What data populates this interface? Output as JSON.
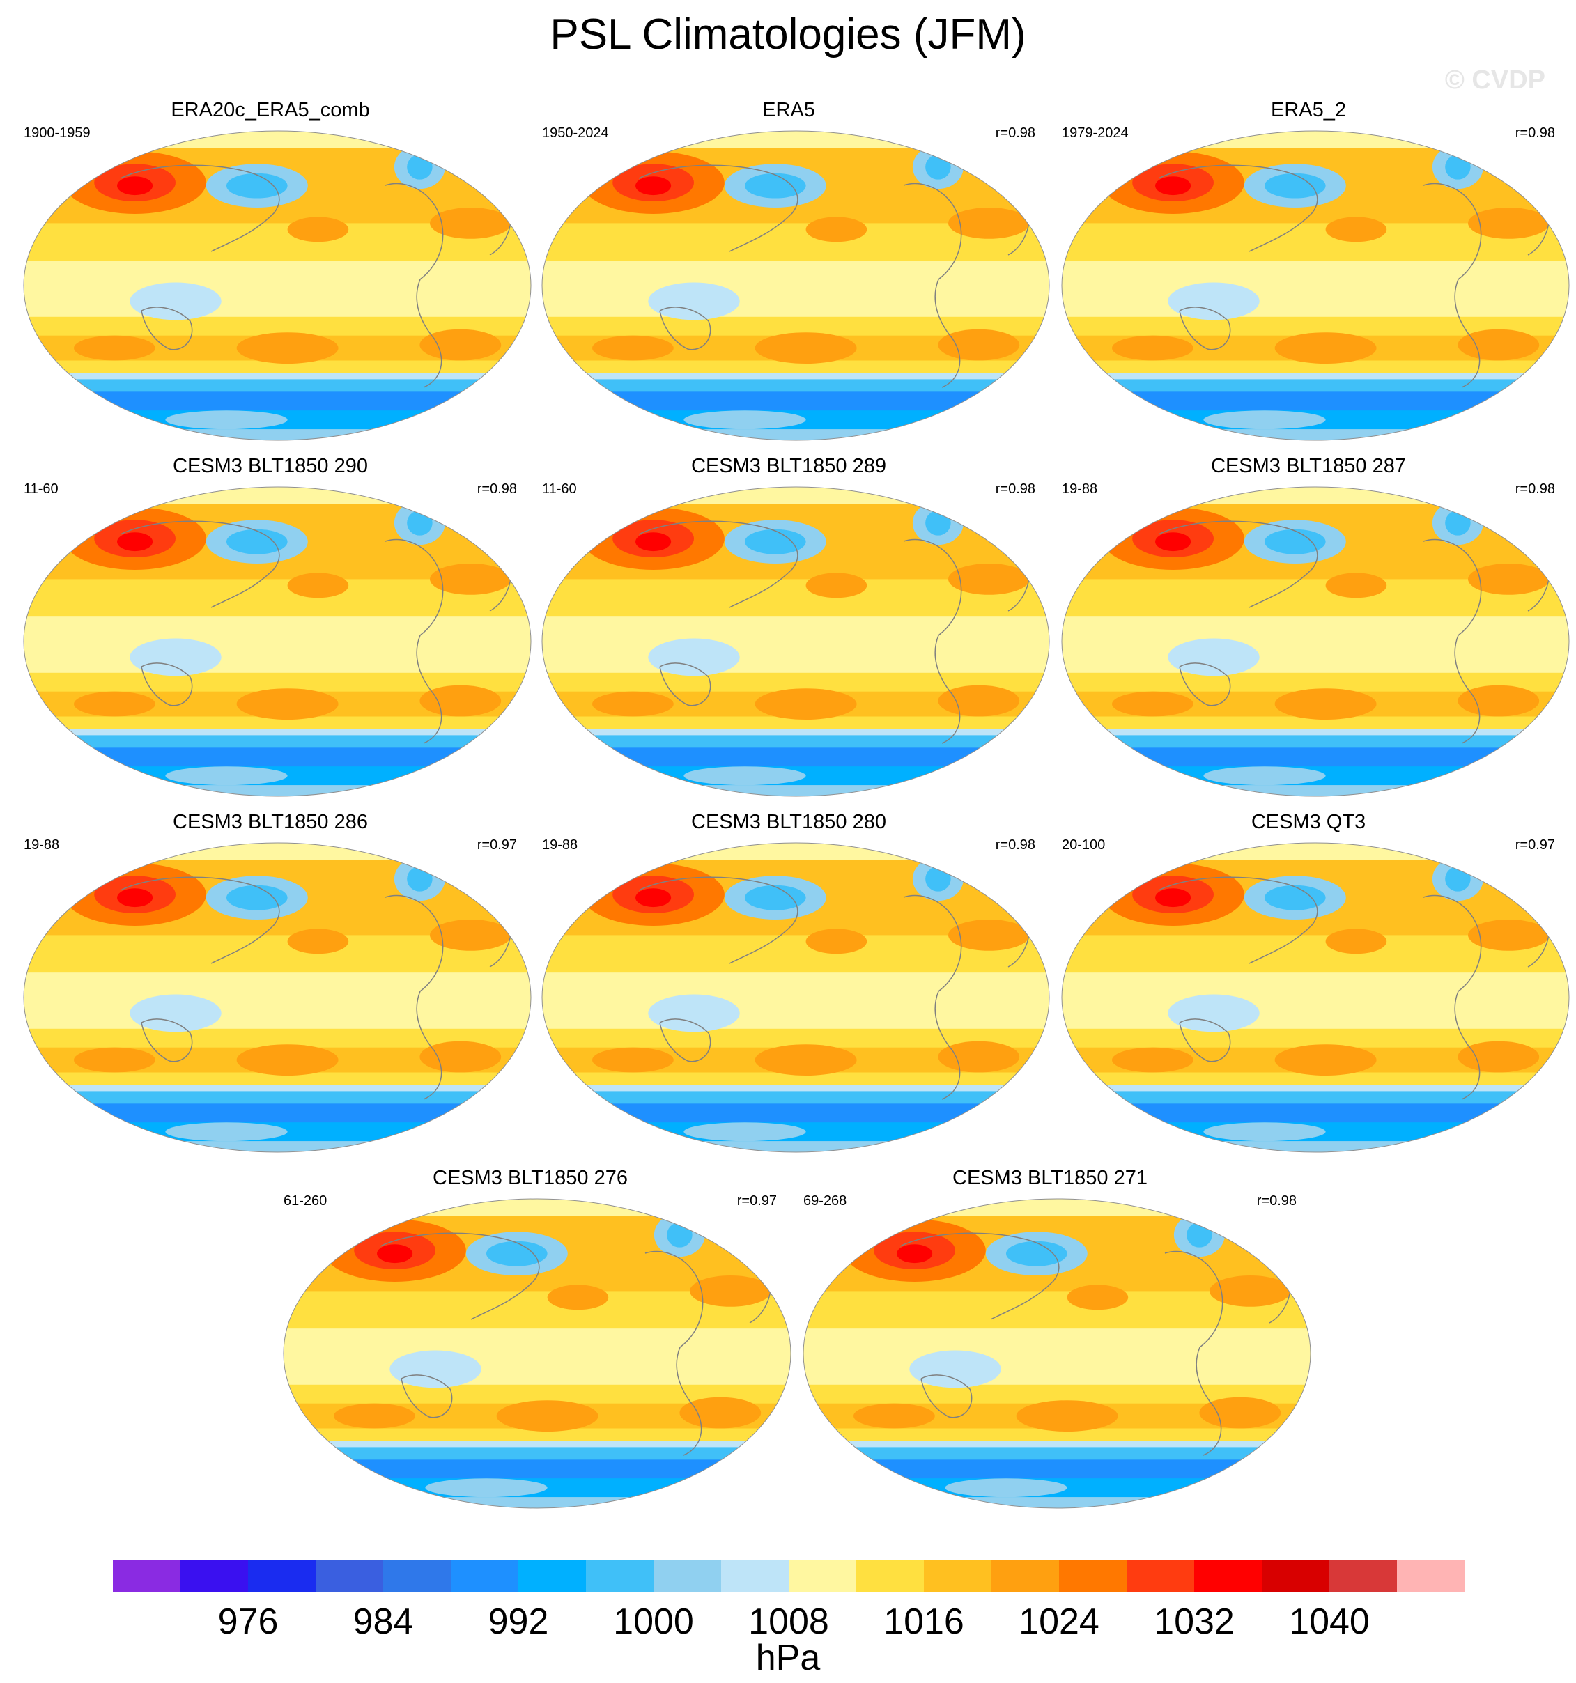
{
  "title": "PSL Climatologies (JFM)",
  "watermark": "© CVDP",
  "chart_data": {
    "type": "heatmap",
    "title": "PSL Climatologies (JFM)",
    "units": "hPa",
    "colorbar": {
      "levels": [
        972,
        976,
        980,
        984,
        988,
        992,
        996,
        1000,
        1004,
        1008,
        1012,
        1016,
        1020,
        1024,
        1028,
        1032,
        1036,
        1040,
        1044
      ],
      "tick_labels": [
        "976",
        "984",
        "992",
        "1000",
        "1008",
        "1016",
        "1024",
        "1032",
        "1040"
      ],
      "colors": [
        "#8a2be2",
        "#3a10f0",
        "#1a2cf0",
        "#3a5fe0",
        "#2f78ea",
        "#1e90ff",
        "#00b0ff",
        "#40c0f8",
        "#90d0f0",
        "#bee4f8",
        "#fff7a0",
        "#ffe040",
        "#ffc020",
        "#ffa010",
        "#ff7800",
        "#ff3c10",
        "#ff0000",
        "#d80000",
        "#d83838",
        "#ffb4b4"
      ]
    },
    "panels": [
      {
        "name": "ERA20c_ERA5_comb",
        "years": "1900-1959",
        "corr": ""
      },
      {
        "name": "ERA5",
        "years": "1950-2024",
        "corr": "r=0.98"
      },
      {
        "name": "ERA5_2",
        "years": "1979-2024",
        "corr": "r=0.98"
      },
      {
        "name": "CESM3 BLT1850 290",
        "years": "11-60",
        "corr": "r=0.98"
      },
      {
        "name": "CESM3 BLT1850 289",
        "years": "11-60",
        "corr": "r=0.98"
      },
      {
        "name": "CESM3 BLT1850 287",
        "years": "19-88",
        "corr": "r=0.98"
      },
      {
        "name": "CESM3 BLT1850 286",
        "years": "19-88",
        "corr": "r=0.97"
      },
      {
        "name": "CESM3 BLT1850 280",
        "years": "19-88",
        "corr": "r=0.98"
      },
      {
        "name": "CESM3 QT3",
        "years": "20-100",
        "corr": "r=0.97"
      },
      {
        "name": "CESM3 BLT1850 276",
        "years": "61-260",
        "corr": "r=0.97"
      },
      {
        "name": "CESM3 BLT1850 271",
        "years": "69-268",
        "corr": "r=0.98"
      }
    ]
  }
}
